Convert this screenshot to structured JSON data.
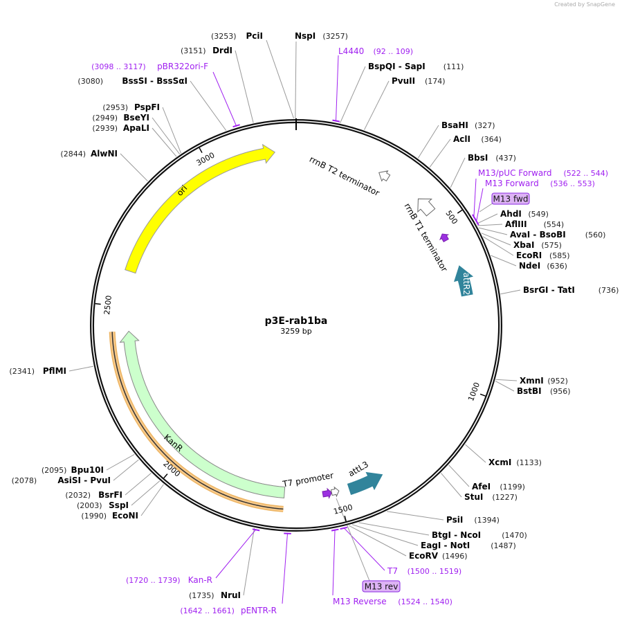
{
  "credit": "Created by SnapGene",
  "plasmid": {
    "name": "p3E-rab1ba",
    "length": "3259 bp",
    "total_bp": 3259
  },
  "colors": {
    "ori": "#ffff00",
    "kanr": "#ccffcc",
    "att": "#31849b",
    "orf": "#f7c98a",
    "primer": "#a020f0",
    "promoter": "#9b30e0"
  },
  "ticks": [
    "500",
    "1000",
    "1500",
    "2000",
    "2500",
    "3000"
  ],
  "enzymes": [
    {
      "name": "NspI",
      "pos": "(3257)",
      "bp": 3257
    },
    {
      "name": "BspQI  - SapI",
      "pos": "(111)",
      "bp": 111
    },
    {
      "name": "PvuII",
      "pos": "(174)",
      "bp": 174
    },
    {
      "name": "BsaHI",
      "pos": "(327)",
      "bp": 327
    },
    {
      "name": "AclI",
      "pos": "(364)",
      "bp": 364
    },
    {
      "name": "BbsI",
      "pos": "(437)",
      "bp": 437
    },
    {
      "name": "AhdI",
      "pos": "(549)",
      "bp": 549
    },
    {
      "name": "AflIII",
      "pos": "(554)",
      "bp": 554
    },
    {
      "name": "AvaI  - BsoBI",
      "pos": "(560)",
      "bp": 560
    },
    {
      "name": "XbaI",
      "pos": "(575)",
      "bp": 575
    },
    {
      "name": "EcoRI",
      "pos": "(585)",
      "bp": 585
    },
    {
      "name": "NdeI",
      "pos": "(636)",
      "bp": 636
    },
    {
      "name": "BsrGI  - TatI",
      "pos": "(736)",
      "bp": 736
    },
    {
      "name": "XmnI",
      "pos": "(952)",
      "bp": 952
    },
    {
      "name": "BstBI",
      "pos": "(956)",
      "bp": 956
    },
    {
      "name": "XcmI",
      "pos": "(1133)",
      "bp": 1133
    },
    {
      "name": "AfeI",
      "pos": "(1199)",
      "bp": 1199
    },
    {
      "name": "StuI",
      "pos": "(1227)",
      "bp": 1227
    },
    {
      "name": "PsiI",
      "pos": "(1394)",
      "bp": 1394
    },
    {
      "name": "BtgI  - NcoI",
      "pos": "(1470)",
      "bp": 1470
    },
    {
      "name": "EagI  - NotI",
      "pos": "(1487)",
      "bp": 1487
    },
    {
      "name": "EcoRV",
      "pos": "(1496)",
      "bp": 1496
    },
    {
      "name": "NruI",
      "pos": "(1735)",
      "bp": 1735
    },
    {
      "name": "EcoNI",
      "pos": "(1990)",
      "bp": 1990
    },
    {
      "name": "SspI",
      "pos": "(2003)",
      "bp": 2003
    },
    {
      "name": "BsrFI",
      "pos": "(2032)",
      "bp": 2032
    },
    {
      "name": "AsiSI  - PvuI",
      "pos": "(2078)",
      "bp": 2078
    },
    {
      "name": "Bpu10I",
      "pos": "(2095)",
      "bp": 2095
    },
    {
      "name": "PflMI",
      "pos": "(2341)",
      "bp": 2341
    },
    {
      "name": "AlwNI",
      "pos": "(2844)",
      "bp": 2844
    },
    {
      "name": "ApaLI",
      "pos": "(2939)",
      "bp": 2939
    },
    {
      "name": "BseYI",
      "pos": "(2949)",
      "bp": 2949
    },
    {
      "name": "PspFI",
      "pos": "(2953)",
      "bp": 2953
    },
    {
      "name": "BssSI  - BssSαI",
      "pos": "(3080)",
      "bp": 3080
    },
    {
      "name": "DrdI",
      "pos": "(3151)",
      "bp": 3151
    },
    {
      "name": "PciI",
      "pos": "(3253)",
      "bp": 3253
    }
  ],
  "primers": [
    {
      "name": "L4440",
      "range": "(92 .. 109)",
      "bp": 100
    },
    {
      "name": "M13/pUC Forward",
      "range": "(522 .. 544)",
      "bp": 533
    },
    {
      "name": "M13 Forward",
      "range": "(536 .. 553)",
      "bp": 545
    },
    {
      "name": "T7",
      "range": "(1500 .. 1519)",
      "bp": 1510
    },
    {
      "name": "M13 Reverse",
      "range": "(1524 .. 1540)",
      "bp": 1532
    },
    {
      "name": "pENTR-R",
      "range": "(1642 .. 1661)",
      "bp": 1651
    },
    {
      "name": "Kan-R",
      "range": "(1720 .. 1739)",
      "bp": 1730
    },
    {
      "name": "pBR322ori-F",
      "range": "(3098 .. 3117)",
      "bp": 3108
    }
  ],
  "boxes": [
    {
      "label": "M13 fwd"
    },
    {
      "label": "M13 rev"
    }
  ],
  "features": {
    "ori": "ori",
    "kanr": "KanR",
    "attr2": "attR2",
    "attl3": "attL3",
    "t2": "rrnB T2 terminator",
    "t1": "rrnB T1 terminator",
    "t7": "T7 promoter"
  }
}
